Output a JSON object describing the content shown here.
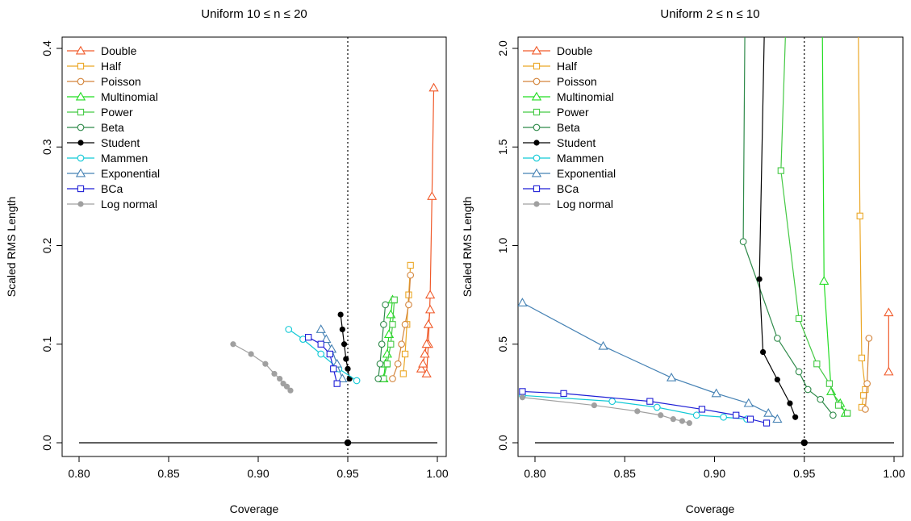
{
  "chart_data": [
    {
      "type": "line",
      "title": "Uniform 10 ≤ n ≤ 20",
      "xlabel": "Coverage",
      "ylabel": "Scaled RMS Length",
      "xlim": [
        0.8,
        1.0
      ],
      "ylim": [
        0.0,
        0.4
      ],
      "xticks": [
        "0.80",
        "0.85",
        "0.90",
        "0.95",
        "1.00"
      ],
      "yticks": [
        "0.0",
        "0.1",
        "0.2",
        "0.3",
        "0.4"
      ],
      "reference_vline": 0.95,
      "reference_segment": {
        "x": [
          0.8,
          1.0
        ],
        "y": [
          0.0,
          0.0
        ]
      },
      "reference_point": {
        "x": 0.95,
        "y": 0.0
      },
      "legend_position": "top-left",
      "series": [
        {
          "name": "Double",
          "color": "#f05a2a",
          "marker": "triangle",
          "x": [
            0.994,
            0.995,
            0.996,
            0.997,
            0.998
          ],
          "y": [
            0.07,
            0.1,
            0.15,
            0.25,
            0.36
          ],
          "x_extra": [
            0.991,
            0.992,
            0.993,
            0.994,
            0.995,
            0.996
          ],
          "y_extra": [
            0.075,
            0.08,
            0.09,
            0.1,
            0.12,
            0.135
          ]
        },
        {
          "name": "Half",
          "color": "#eba726",
          "marker": "square",
          "x": [
            0.981,
            0.982,
            0.983,
            0.984,
            0.985
          ],
          "y": [
            0.07,
            0.09,
            0.12,
            0.15,
            0.18
          ]
        },
        {
          "name": "Poisson",
          "color": "#d3843b",
          "marker": "circle",
          "x": [
            0.975,
            0.978,
            0.98,
            0.982,
            0.984,
            0.985
          ],
          "y": [
            0.065,
            0.08,
            0.1,
            0.12,
            0.14,
            0.17
          ]
        },
        {
          "name": "Multinomial",
          "color": "#22dd22",
          "marker": "triangle",
          "x": [
            0.97,
            0.971,
            0.972,
            0.973,
            0.974,
            0.975
          ],
          "y": [
            0.065,
            0.08,
            0.09,
            0.11,
            0.13,
            0.145
          ]
        },
        {
          "name": "Power",
          "color": "#44c944",
          "marker": "square",
          "x": [
            0.97,
            0.972,
            0.974,
            0.975,
            0.976
          ],
          "y": [
            0.065,
            0.08,
            0.1,
            0.12,
            0.145
          ]
        },
        {
          "name": "Beta",
          "color": "#2f8a4a",
          "marker": "circle",
          "x": [
            0.967,
            0.968,
            0.969,
            0.97,
            0.971
          ],
          "y": [
            0.065,
            0.08,
            0.1,
            0.12,
            0.14
          ]
        },
        {
          "name": "Student",
          "color": "#000000",
          "marker": "filled-circle",
          "x": [
            0.946,
            0.947,
            0.948,
            0.949,
            0.95,
            0.951
          ],
          "y": [
            0.13,
            0.115,
            0.1,
            0.085,
            0.075,
            0.065
          ]
        },
        {
          "name": "Mammen",
          "color": "#11c9d6",
          "marker": "circle",
          "x": [
            0.917,
            0.925,
            0.935,
            0.945,
            0.955
          ],
          "y": [
            0.115,
            0.105,
            0.09,
            0.075,
            0.063
          ]
        },
        {
          "name": "Exponential",
          "color": "#4682b4",
          "marker": "triangle",
          "x": [
            0.935,
            0.938,
            0.941,
            0.944,
            0.947
          ],
          "y": [
            0.115,
            0.105,
            0.095,
            0.08,
            0.065
          ]
        },
        {
          "name": "BCa",
          "color": "#1f1fd6",
          "marker": "square",
          "x": [
            0.928,
            0.935,
            0.94,
            0.942,
            0.944
          ],
          "y": [
            0.107,
            0.1,
            0.09,
            0.075,
            0.06
          ]
        },
        {
          "name": "Log normal",
          "color": "#a0a0a0",
          "marker": "filled-circle",
          "x": [
            0.886,
            0.896,
            0.904,
            0.909,
            0.912,
            0.914,
            0.916,
            0.918
          ],
          "y": [
            0.1,
            0.09,
            0.08,
            0.07,
            0.065,
            0.06,
            0.057,
            0.053
          ]
        }
      ]
    },
    {
      "type": "line",
      "title": "Uniform 2 ≤ n ≤ 10",
      "xlabel": "Coverage",
      "ylabel": "Scaled RMS Length",
      "xlim": [
        0.8,
        1.0
      ],
      "ylim": [
        0.0,
        2.0
      ],
      "xticks": [
        "0.80",
        "0.85",
        "0.90",
        "0.95",
        "1.00"
      ],
      "yticks": [
        "0.0",
        "0.5",
        "1.0",
        "1.5",
        "2.0"
      ],
      "reference_vline": 0.95,
      "reference_segment": {
        "x": [
          0.8,
          1.0
        ],
        "y": [
          0.0,
          0.0
        ]
      },
      "reference_point": {
        "x": 0.95,
        "y": 0.0
      },
      "legend_position": "top-left",
      "series": [
        {
          "name": "Double",
          "color": "#f05a2a",
          "marker": "triangle",
          "x": [
            0.997,
            0.997
          ],
          "y": [
            0.36,
            0.66
          ]
        },
        {
          "name": "Half",
          "color": "#eba726",
          "marker": "square",
          "x": [
            0.982,
            0.983,
            0.984,
            0.982,
            0.981,
            0.98
          ],
          "y": [
            0.18,
            0.24,
            0.27,
            0.43,
            1.15,
            2.2
          ]
        },
        {
          "name": "Poisson",
          "color": "#d3843b",
          "marker": "circle",
          "x": [
            0.984,
            0.985,
            0.986
          ],
          "y": [
            0.17,
            0.3,
            0.53
          ]
        },
        {
          "name": "Multinomial",
          "color": "#22dd22",
          "marker": "triangle",
          "x": [
            0.973,
            0.97,
            0.965,
            0.961,
            0.96
          ],
          "y": [
            0.15,
            0.2,
            0.26,
            0.82,
            2.2
          ]
        },
        {
          "name": "Power",
          "color": "#44c944",
          "marker": "square",
          "x": [
            0.974,
            0.969,
            0.964,
            0.957,
            0.947,
            0.937,
            0.94
          ],
          "y": [
            0.15,
            0.19,
            0.3,
            0.4,
            0.63,
            1.38,
            2.2
          ]
        },
        {
          "name": "Beta",
          "color": "#2f8a4a",
          "marker": "circle",
          "x": [
            0.966,
            0.959,
            0.952,
            0.947,
            0.935,
            0.916,
            0.917
          ],
          "y": [
            0.14,
            0.22,
            0.27,
            0.36,
            0.53,
            1.02,
            2.2
          ]
        },
        {
          "name": "Student",
          "color": "#000000",
          "marker": "filled-circle",
          "x": [
            0.945,
            0.942,
            0.935,
            0.927,
            0.925,
            0.928
          ],
          "y": [
            0.13,
            0.2,
            0.32,
            0.46,
            0.83,
            2.2
          ]
        },
        {
          "name": "Mammen",
          "color": "#11c9d6",
          "marker": "circle",
          "x": [
            0.793,
            0.843,
            0.868,
            0.89,
            0.905,
            0.918
          ],
          "y": [
            0.24,
            0.21,
            0.18,
            0.14,
            0.13,
            0.12
          ]
        },
        {
          "name": "Exponential",
          "color": "#4682b4",
          "marker": "triangle",
          "x": [
            0.793,
            0.838,
            0.876,
            0.901,
            0.919,
            0.93,
            0.935
          ],
          "y": [
            0.71,
            0.49,
            0.33,
            0.25,
            0.2,
            0.15,
            0.12
          ]
        },
        {
          "name": "BCa",
          "color": "#1f1fd6",
          "marker": "square",
          "x": [
            0.793,
            0.816,
            0.864,
            0.893,
            0.912,
            0.92,
            0.929
          ],
          "y": [
            0.26,
            0.25,
            0.21,
            0.17,
            0.14,
            0.12,
            0.1
          ]
        },
        {
          "name": "Log normal",
          "color": "#a0a0a0",
          "marker": "filled-circle",
          "x": [
            0.793,
            0.833,
            0.857,
            0.87,
            0.877,
            0.882,
            0.886
          ],
          "y": [
            0.23,
            0.19,
            0.16,
            0.14,
            0.12,
            0.11,
            0.1
          ]
        }
      ]
    }
  ]
}
